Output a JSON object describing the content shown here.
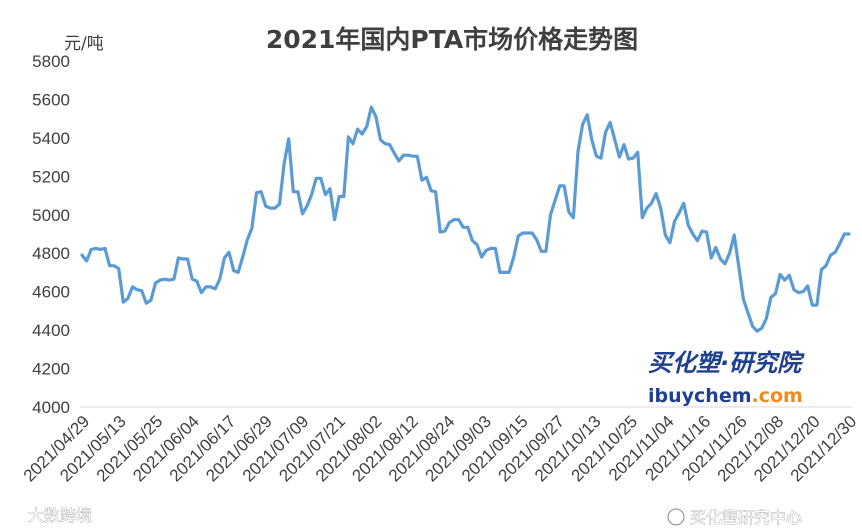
{
  "chart_data": {
    "type": "line",
    "title": "2021年国内PTA市场价格走势图",
    "unit_label": "元/吨",
    "ylim": [
      4000,
      5800
    ],
    "yticks": [
      4000,
      4200,
      4400,
      4600,
      4800,
      5000,
      5200,
      5400,
      5600,
      5800
    ],
    "x_tick_labels": [
      "2021/04/29",
      "2021/05/13",
      "2021/05/25",
      "2021/06/04",
      "2021/06/17",
      "2021/06/29",
      "2021/07/09",
      "2021/07/21",
      "2021/08/02",
      "2021/08/12",
      "2021/08/24",
      "2021/09/03",
      "2021/09/15",
      "2021/09/27",
      "2021/10/13",
      "2021/10/25",
      "2021/11/04",
      "2021/11/16",
      "2021/11/26",
      "2021/12/08",
      "2021/12/20",
      "2021/12/30"
    ],
    "grid": false,
    "series_color": "#5b9bd5",
    "values": [
      4790,
      4760,
      4820,
      4825,
      4820,
      4825,
      4735,
      4735,
      4720,
      4545,
      4565,
      4625,
      4610,
      4605,
      4540,
      4555,
      4645,
      4660,
      4665,
      4660,
      4665,
      4775,
      4770,
      4770,
      4665,
      4655,
      4595,
      4625,
      4625,
      4615,
      4665,
      4775,
      4805,
      4710,
      4700,
      4780,
      4870,
      4930,
      5115,
      5120,
      5045,
      5035,
      5035,
      5055,
      5265,
      5395,
      5120,
      5120,
      5005,
      5045,
      5105,
      5190,
      5190,
      5105,
      5135,
      4975,
      5095,
      5095,
      5405,
      5370,
      5445,
      5420,
      5460,
      5560,
      5510,
      5390,
      5370,
      5365,
      5320,
      5280,
      5310,
      5310,
      5305,
      5305,
      5180,
      5195,
      5125,
      5120,
      4910,
      4915,
      4960,
      4975,
      4975,
      4935,
      4935,
      4865,
      4845,
      4780,
      4815,
      4825,
      4825,
      4700,
      4700,
      4700,
      4780,
      4890,
      4905,
      4905,
      4905,
      4870,
      4810,
      4810,
      5000,
      5075,
      5150,
      5150,
      5015,
      4985,
      5330,
      5470,
      5520,
      5390,
      5305,
      5295,
      5430,
      5480,
      5390,
      5300,
      5365,
      5290,
      5295,
      5325,
      4985,
      5035,
      5060,
      5110,
      5035,
      4895,
      4855,
      4965,
      5010,
      5060,
      4945,
      4900,
      4865,
      4915,
      4910,
      4775,
      4830,
      4770,
      4745,
      4800,
      4895,
      4730,
      4560,
      4490,
      4420,
      4395,
      4410,
      4460,
      4570,
      4590,
      4690,
      4660,
      4685,
      4610,
      4595,
      4600,
      4630,
      4530,
      4530,
      4715,
      4735,
      4790,
      4805,
      4850,
      4900,
      4900
    ],
    "watermarks": {
      "brand_cn": "买化塑·研究院",
      "brand_en_left": "ibuychem",
      "brand_en_right": ".com",
      "footer_left": "大数跨境",
      "footer_right": "买化塑研究中心"
    }
  }
}
